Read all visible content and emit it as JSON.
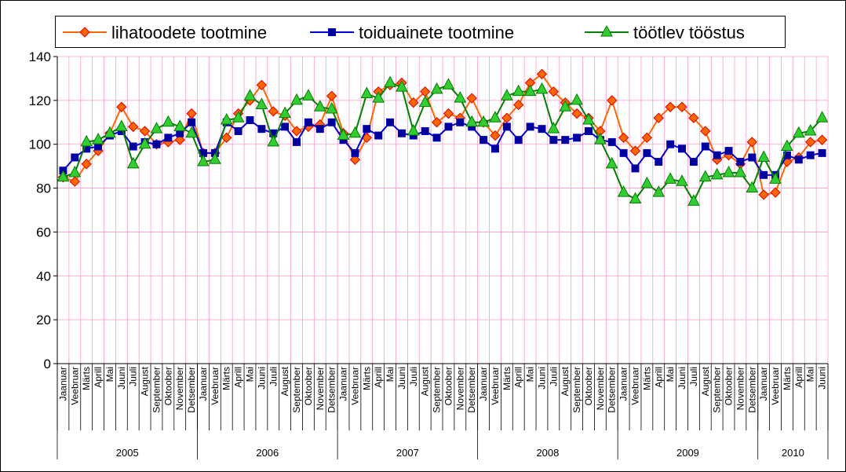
{
  "chart_data": {
    "type": "line",
    "categories": [
      "Jaanuar",
      "Veebruar",
      "Märts",
      "Aprill",
      "Mai",
      "Juuni",
      "Juuli",
      "August",
      "September",
      "Oktoober",
      "November",
      "Detsember",
      "Jaanuar",
      "Veebruar",
      "Märts",
      "Aprill",
      "Mai",
      "Juuni",
      "Juuli",
      "August",
      "September",
      "Oktoober",
      "November",
      "Detsember",
      "Jaanuar",
      "Veebruar",
      "Märts",
      "Aprill",
      "Mai",
      "Juuni",
      "Juuli",
      "August",
      "September",
      "Oktoober",
      "November",
      "Detsember",
      "Jaanuar",
      "Veebruar",
      "Märts",
      "Aprill",
      "Mai",
      "Juuni",
      "Juuli",
      "August",
      "September",
      "Oktoober",
      "November",
      "Detsember",
      "Jaanuar",
      "Veebruar",
      "Märts",
      "Aprill",
      "Mai",
      "Juuni",
      "Juuli",
      "August",
      "September",
      "Oktoober",
      "November",
      "Detsember",
      "Jaanuar",
      "Veebruar",
      "Märts",
      "Aprill",
      "Mai",
      "Juuni"
    ],
    "group_labels": [
      "2005",
      "2006",
      "2007",
      "2008",
      "2009",
      "2010"
    ],
    "series": [
      {
        "name": "lihatoodete tootmine",
        "color": "#ff6600",
        "marker": "diamond",
        "values": [
          85,
          83,
          91,
          97,
          105,
          117,
          108,
          106,
          100,
          101,
          102,
          114,
          96,
          96,
          103,
          114,
          120,
          127,
          115,
          113,
          106,
          108,
          109,
          122,
          105,
          93,
          103,
          124,
          127,
          128,
          119,
          124,
          110,
          114,
          112,
          121,
          110,
          104,
          112,
          118,
          128,
          132,
          124,
          119,
          114,
          112,
          106,
          120,
          103,
          97,
          103,
          112,
          117,
          117,
          112,
          106,
          93,
          95,
          91,
          101,
          77,
          78,
          92,
          94,
          101,
          102
        ]
      },
      {
        "name": "toiduainete tootmine",
        "color": "#0000cc",
        "marker": "square",
        "values": [
          88,
          94,
          98,
          99,
          104,
          106,
          99,
          101,
          100,
          103,
          105,
          110,
          96,
          96,
          110,
          106,
          111,
          107,
          105,
          108,
          101,
          110,
          107,
          110,
          102,
          96,
          107,
          104,
          110,
          105,
          104,
          106,
          103,
          108,
          110,
          108,
          102,
          98,
          108,
          102,
          108,
          107,
          102,
          102,
          103,
          106,
          102,
          101,
          96,
          89,
          96,
          92,
          100,
          98,
          92,
          99,
          95,
          97,
          92,
          94,
          86,
          86,
          95,
          93,
          95,
          96
        ]
      },
      {
        "name": "töötlev tööstus",
        "color": "#008000",
        "marker": "triangle",
        "values": [
          85,
          87,
          101,
          102,
          105,
          108,
          91,
          100,
          107,
          110,
          108,
          105,
          92,
          93,
          111,
          112,
          122,
          118,
          101,
          114,
          120,
          122,
          117,
          116,
          104,
          105,
          123,
          121,
          128,
          126,
          106,
          119,
          125,
          127,
          121,
          110,
          110,
          112,
          122,
          124,
          124,
          125,
          107,
          117,
          120,
          111,
          102,
          91,
          78,
          75,
          82,
          78,
          84,
          83,
          74,
          85,
          86,
          87,
          87,
          80,
          94,
          84,
          99,
          105,
          106,
          112
        ]
      }
    ],
    "ylim": [
      0,
      140
    ],
    "yticks": [
      0,
      20,
      40,
      60,
      80,
      100,
      120,
      140
    ],
    "grid": true
  }
}
